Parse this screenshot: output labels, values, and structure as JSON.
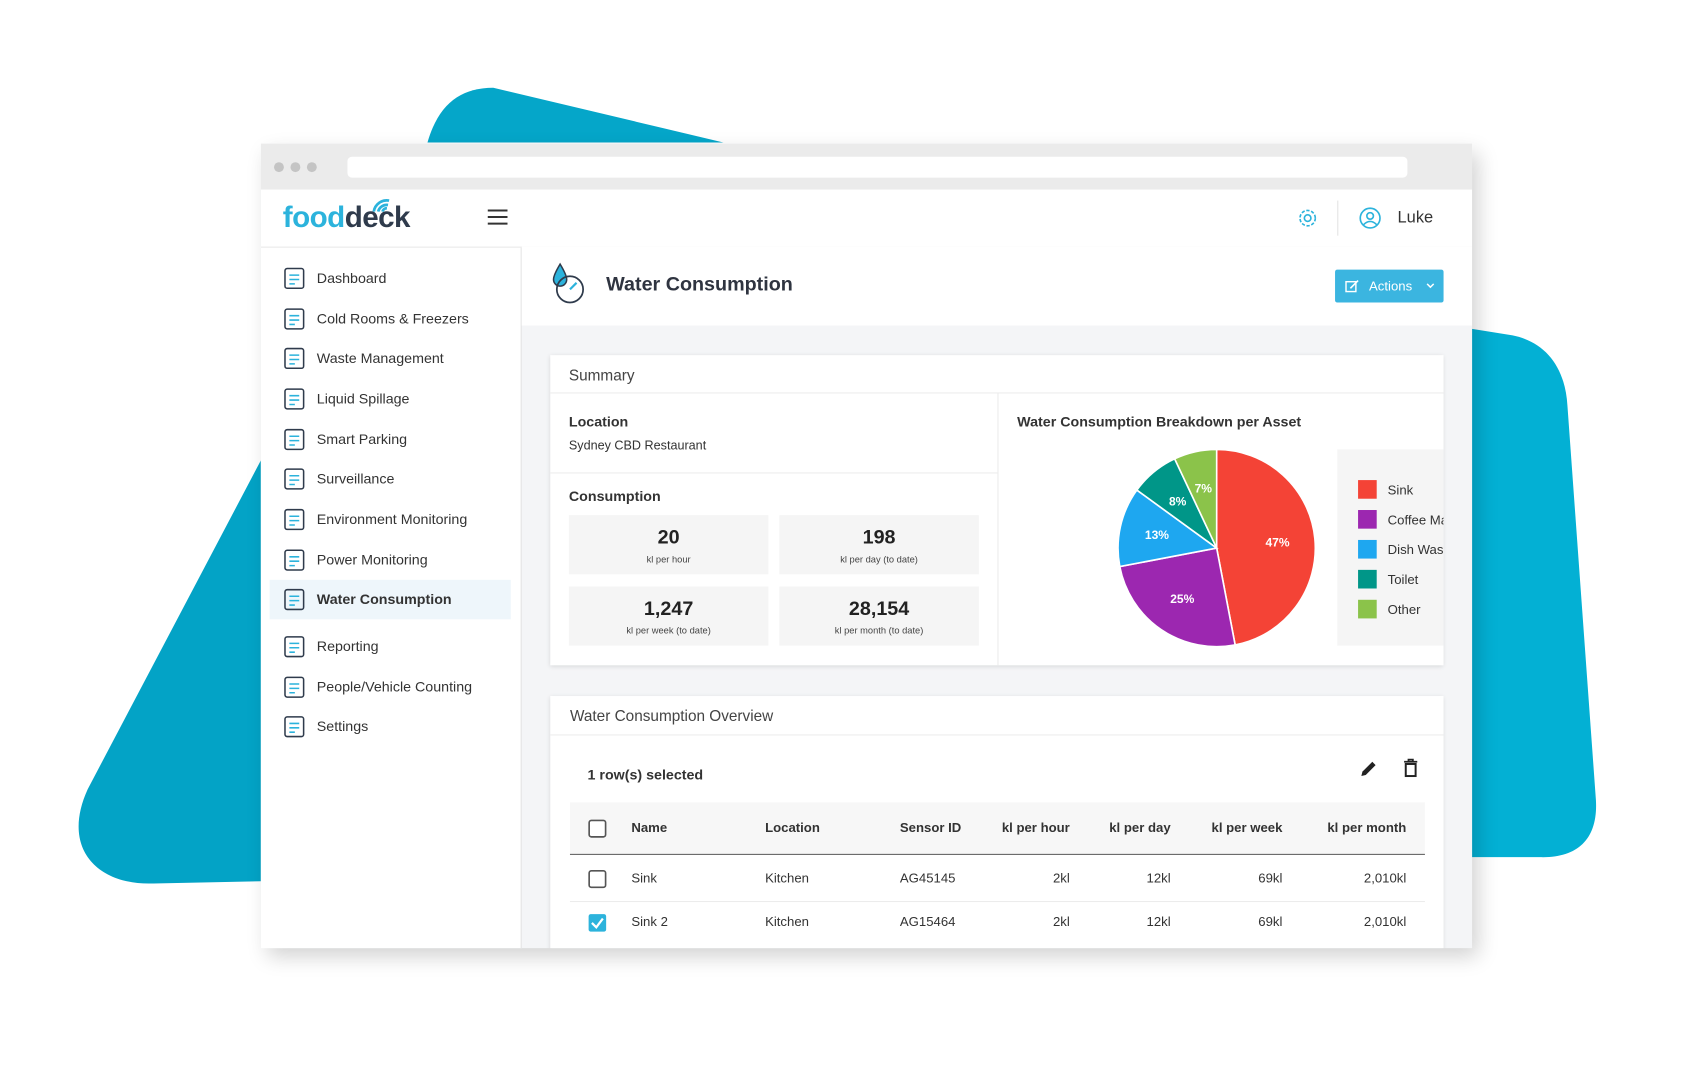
{
  "header": {
    "logo": [
      "food",
      "deck"
    ],
    "user": "Luke"
  },
  "sidebar": {
    "items": [
      "Dashboard",
      "Cold Rooms & Freezers",
      "Waste Management",
      "Liquid Spillage",
      "Smart Parking",
      "Surveillance",
      "Environment Monitoring",
      "Power Monitoring",
      "Water Consumption",
      "Reporting",
      "People/Vehicle Counting",
      "Settings"
    ],
    "active": 8
  },
  "page": {
    "title": "Water Consumption",
    "actions": "Actions"
  },
  "summary": {
    "title": "Summary",
    "location_label": "Location",
    "location": "Sydney CBD Restaurant",
    "consumption_label": "Consumption",
    "stats": [
      {
        "value": "20",
        "caption": "kl per hour"
      },
      {
        "value": "198",
        "caption": "kl per day (to date)"
      },
      {
        "value": "1,247",
        "caption": "kl per week (to date)"
      },
      {
        "value": "28,154",
        "caption": "kl per month (to date)"
      }
    ]
  },
  "chart_data": {
    "type": "pie",
    "title": "Water Consumption Breakdown per Asset",
    "categories": [
      "Sink",
      "Coffee Machine",
      "Dish Washer",
      "Toilet",
      "Other"
    ],
    "values": [
      47,
      25,
      13,
      8,
      7
    ],
    "value_labels": [
      "47%",
      "25%",
      "13%",
      "8%",
      "7%"
    ],
    "colors": [
      "#f44336",
      "#9c27b0",
      "#1ea7f0",
      "#009688",
      "#8bc34a"
    ]
  },
  "overview": {
    "title": "Water Consumption Overview",
    "selection": "1 row(s) selected",
    "columns": [
      "Name",
      "Location",
      "Sensor ID",
      "kl per hour",
      "kl per day",
      "kl per week",
      "kl per month"
    ],
    "rows": [
      [
        "Sink",
        "Kitchen",
        "AG45145",
        "2kl",
        "12kl",
        "69kl",
        "2,010kl"
      ],
      [
        "Sink 2",
        "Kitchen",
        "AG15464",
        "2kl",
        "12kl",
        "69kl",
        "2,010kl"
      ]
    ],
    "selected": [
      false,
      true
    ]
  }
}
